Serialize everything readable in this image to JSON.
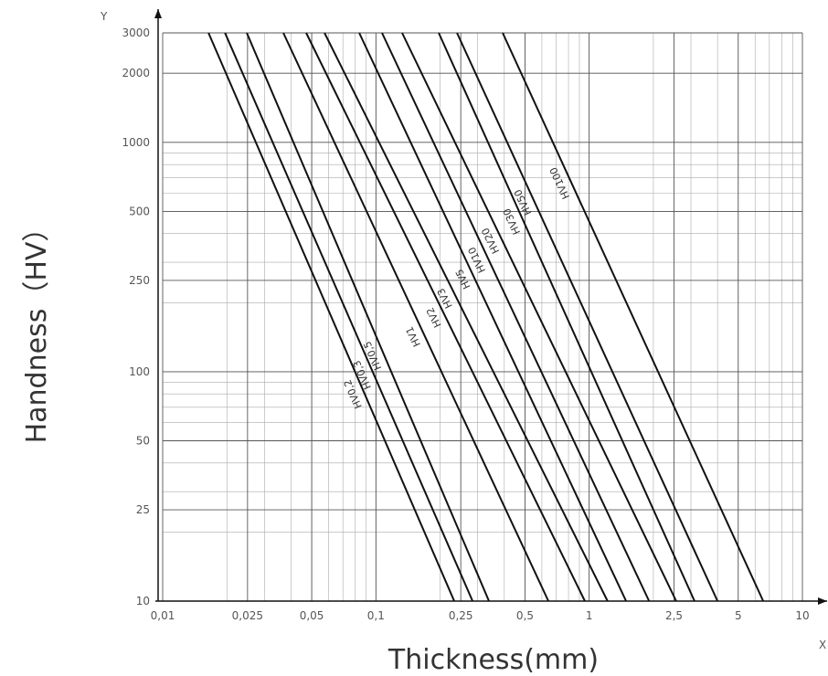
{
  "chart_data": {
    "type": "line",
    "x_label": "Thickness(mm)",
    "y_label": "Handness（HV）",
    "x_axis_letter": "X",
    "y_axis_letter": "Y",
    "xscale": "log",
    "yscale": "log",
    "grid": true,
    "minor_grid": true,
    "xlim": [
      0.01,
      10
    ],
    "ylim": [
      10,
      3000
    ],
    "xticks": [
      {
        "value": 0.01,
        "label": "0,01"
      },
      {
        "value": 0.025,
        "label": "0,025"
      },
      {
        "value": 0.05,
        "label": "0,05"
      },
      {
        "value": 0.1,
        "label": "0,1"
      },
      {
        "value": 0.25,
        "label": "0,25"
      },
      {
        "value": 0.5,
        "label": "0,5"
      },
      1,
      {
        "value": 2.5,
        "label": "2,5"
      },
      5,
      10
    ],
    "yticks": [
      10,
      25,
      50,
      100,
      250,
      500,
      1000,
      2000,
      3000
    ],
    "color": "#111111",
    "y": [
      3000,
      10
    ],
    "series": [
      {
        "name": "HV0,2",
        "x": [
          0.0164,
          0.233
        ]
      },
      {
        "name": "HV0,3",
        "x": [
          0.0196,
          0.284
        ]
      },
      {
        "name": "HV0,5",
        "x": [
          0.0248,
          0.339
        ]
      },
      {
        "name": "HV1",
        "x": [
          0.0368,
          0.644
        ]
      },
      {
        "name": "HV2",
        "x": [
          0.0471,
          0.955
        ]
      },
      {
        "name": "HV3",
        "x": [
          0.0574,
          1.22
        ]
      },
      {
        "name": "HV5",
        "x": [
          0.0835,
          1.49
        ]
      },
      {
        "name": "HV10",
        "x": [
          0.1068,
          1.91
        ]
      },
      {
        "name": "HV20",
        "x": [
          0.1327,
          2.56
        ]
      },
      {
        "name": "HV30",
        "x": [
          0.197,
          3.12
        ]
      },
      {
        "name": "HV50",
        "x": [
          0.24,
          4.0
        ]
      },
      {
        "name": "HV100",
        "x": [
          0.393,
          6.55
        ]
      }
    ]
  }
}
